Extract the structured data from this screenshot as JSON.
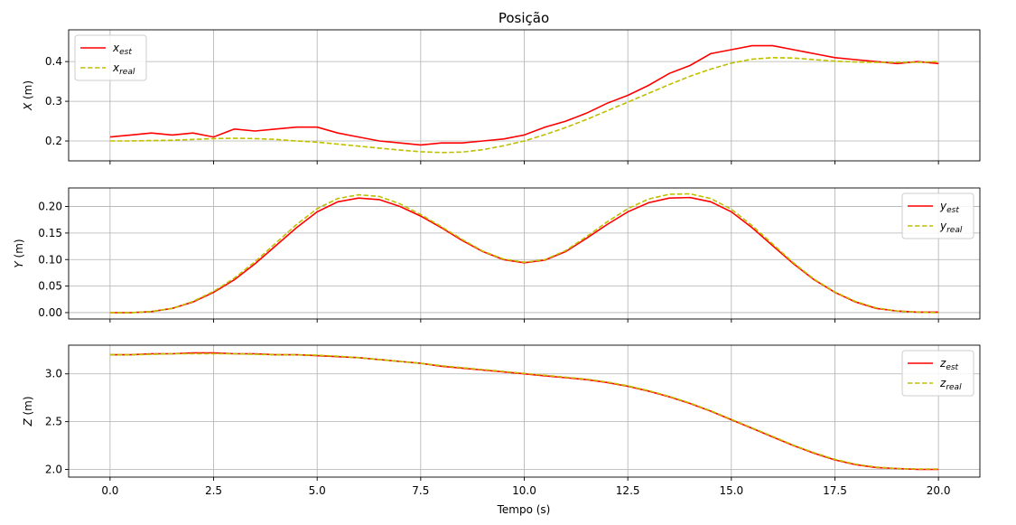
{
  "chart_data": {
    "type": "line",
    "title": "Posição",
    "xlabel": "Tempo (s)",
    "xlim": [
      -1.0,
      21.0
    ],
    "x_ticks": [
      0.0,
      2.5,
      5.0,
      7.5,
      10.0,
      12.5,
      15.0,
      17.5,
      20.0
    ],
    "x_tick_labels": [
      "0.0",
      "2.5",
      "5.0",
      "7.5",
      "10.0",
      "12.5",
      "15.0",
      "17.5",
      "20.0"
    ],
    "grid": true,
    "subplots": [
      {
        "ylabel": "X (m)",
        "ylabel_var": "X",
        "ylabel_unit": " (m)",
        "ylim": [
          0.15,
          0.48
        ],
        "y_ticks": [
          0.2,
          0.3,
          0.4
        ],
        "y_tick_labels": [
          "0.2",
          "0.3",
          "0.4"
        ],
        "legend_position": "top-left",
        "series": [
          {
            "name": "x_est",
            "var": "x",
            "sub": "est",
            "color": "#ff0000",
            "style": "solid",
            "x": [
              0,
              0.5,
              1,
              1.5,
              2,
              2.5,
              3,
              3.5,
              4,
              4.5,
              5,
              5.5,
              6,
              6.5,
              7,
              7.5,
              8,
              8.5,
              9,
              9.5,
              10,
              10.5,
              11,
              11.5,
              12,
              12.5,
              13,
              13.5,
              14,
              14.5,
              15,
              15.5,
              16,
              16.5,
              17,
              17.5,
              18,
              18.5,
              19,
              19.5,
              20
            ],
            "y": [
              0.21,
              0.215,
              0.22,
              0.215,
              0.22,
              0.21,
              0.23,
              0.225,
              0.23,
              0.235,
              0.235,
              0.22,
              0.21,
              0.2,
              0.195,
              0.19,
              0.195,
              0.195,
              0.2,
              0.205,
              0.215,
              0.235,
              0.25,
              0.27,
              0.295,
              0.315,
              0.34,
              0.37,
              0.39,
              0.42,
              0.43,
              0.44,
              0.44,
              0.43,
              0.42,
              0.41,
              0.405,
              0.4,
              0.395,
              0.4,
              0.395
            ]
          },
          {
            "name": "x_real",
            "var": "x",
            "sub": "real",
            "color": "#bfbf00",
            "style": "dashed",
            "x": [
              0,
              0.5,
              1,
              1.5,
              2,
              2.5,
              3,
              3.5,
              4,
              4.5,
              5,
              5.5,
              6,
              6.5,
              7,
              7.5,
              8,
              8.5,
              9,
              9.5,
              10,
              10.5,
              11,
              11.5,
              12,
              12.5,
              13,
              13.5,
              14,
              14.5,
              15,
              15.5,
              16,
              16.5,
              17,
              17.5,
              18,
              18.5,
              19,
              19.5,
              20
            ],
            "y": [
              0.2,
              0.2,
              0.201,
              0.202,
              0.204,
              0.206,
              0.207,
              0.206,
              0.204,
              0.2,
              0.197,
              0.192,
              0.187,
              0.182,
              0.177,
              0.173,
              0.171,
              0.172,
              0.178,
              0.188,
              0.2,
              0.216,
              0.234,
              0.254,
              0.276,
              0.298,
              0.32,
              0.342,
              0.363,
              0.381,
              0.396,
              0.406,
              0.41,
              0.409,
              0.405,
              0.401,
              0.399,
              0.398,
              0.398,
              0.398,
              0.4
            ]
          }
        ]
      },
      {
        "ylabel": "Y (m)",
        "ylabel_var": "Y",
        "ylabel_unit": " (m)",
        "ylim": [
          -0.012,
          0.235
        ],
        "y_ticks": [
          0.0,
          0.05,
          0.1,
          0.15,
          0.2
        ],
        "y_tick_labels": [
          "0.00",
          "0.05",
          "0.10",
          "0.15",
          "0.20"
        ],
        "legend_position": "top-right",
        "series": [
          {
            "name": "y_est",
            "var": "y",
            "sub": "est",
            "color": "#ff0000",
            "style": "solid",
            "x": [
              0,
              0.5,
              1,
              1.5,
              2,
              2.5,
              3,
              3.5,
              4,
              4.5,
              5,
              5.5,
              6,
              6.5,
              7,
              7.5,
              8,
              8.5,
              9,
              9.5,
              10,
              10.5,
              11,
              11.5,
              12,
              12.5,
              13,
              13.5,
              14,
              14.5,
              15,
              15.5,
              16,
              16.5,
              17,
              17.5,
              18,
              18.5,
              19,
              19.5,
              20
            ],
            "y": [
              0.0,
              0.0,
              0.002,
              0.008,
              0.02,
              0.038,
              0.062,
              0.092,
              0.126,
              0.16,
              0.19,
              0.209,
              0.216,
              0.213,
              0.2,
              0.182,
              0.16,
              0.136,
              0.115,
              0.1,
              0.094,
              0.099,
              0.115,
              0.14,
              0.166,
              0.19,
              0.207,
              0.216,
              0.217,
              0.209,
              0.19,
              0.16,
              0.126,
              0.092,
              0.062,
              0.038,
              0.02,
              0.008,
              0.003,
              0.001,
              0.001
            ]
          },
          {
            "name": "y_real",
            "var": "y",
            "sub": "real",
            "color": "#bfbf00",
            "style": "dashed",
            "x": [
              0,
              0.5,
              1,
              1.5,
              2,
              2.5,
              3,
              3.5,
              4,
              4.5,
              5,
              5.5,
              6,
              6.5,
              7,
              7.5,
              8,
              8.5,
              9,
              9.5,
              10,
              10.5,
              11,
              11.5,
              12,
              12.5,
              13,
              13.5,
              14,
              14.5,
              15,
              15.5,
              16,
              16.5,
              17,
              17.5,
              18,
              18.5,
              19,
              19.5,
              20
            ],
            "y": [
              0.0,
              0.0,
              0.002,
              0.008,
              0.021,
              0.04,
              0.065,
              0.096,
              0.131,
              0.166,
              0.196,
              0.215,
              0.222,
              0.219,
              0.205,
              0.185,
              0.162,
              0.138,
              0.116,
              0.101,
              0.095,
              0.1,
              0.117,
              0.143,
              0.171,
              0.196,
              0.214,
              0.223,
              0.224,
              0.215,
              0.195,
              0.164,
              0.129,
              0.094,
              0.063,
              0.039,
              0.021,
              0.009,
              0.003,
              0.001,
              0.0
            ]
          }
        ]
      },
      {
        "ylabel": "Z (m)",
        "ylabel_var": "Z",
        "ylabel_unit": " (m)",
        "ylim": [
          1.92,
          3.3
        ],
        "y_ticks": [
          2.0,
          2.5,
          3.0
        ],
        "y_tick_labels": [
          "2.0",
          "2.5",
          "3.0"
        ],
        "legend_position": "top-right",
        "series": [
          {
            "name": "z_est",
            "var": "z",
            "sub": "est",
            "color": "#ff0000",
            "style": "solid",
            "x": [
              0,
              0.5,
              1,
              1.5,
              2,
              2.5,
              3,
              3.5,
              4,
              4.5,
              5,
              5.5,
              6,
              6.5,
              7,
              7.5,
              8,
              8.5,
              9,
              9.5,
              10,
              10.5,
              11,
              11.5,
              12,
              12.5,
              13,
              13.5,
              14,
              14.5,
              15,
              15.5,
              16,
              16.5,
              17,
              17.5,
              18,
              18.5,
              19,
              19.5,
              20
            ],
            "y": [
              3.2,
              3.2,
              3.21,
              3.21,
              3.22,
              3.22,
              3.21,
              3.21,
              3.2,
              3.2,
              3.19,
              3.18,
              3.17,
              3.15,
              3.13,
              3.11,
              3.08,
              3.06,
              3.04,
              3.02,
              3.0,
              2.98,
              2.96,
              2.94,
              2.91,
              2.87,
              2.82,
              2.76,
              2.69,
              2.61,
              2.52,
              2.43,
              2.34,
              2.25,
              2.17,
              2.1,
              2.05,
              2.02,
              2.01,
              2.0,
              2.0
            ]
          },
          {
            "name": "z_real",
            "var": "z",
            "sub": "real",
            "color": "#bfbf00",
            "style": "dashed",
            "x": [
              0,
              0.5,
              1,
              1.5,
              2,
              2.5,
              3,
              3.5,
              4,
              4.5,
              5,
              5.5,
              6,
              6.5,
              7,
              7.5,
              8,
              8.5,
              9,
              9.5,
              10,
              10.5,
              11,
              11.5,
              12,
              12.5,
              13,
              13.5,
              14,
              14.5,
              15,
              15.5,
              16,
              16.5,
              17,
              17.5,
              18,
              18.5,
              19,
              19.5,
              20
            ],
            "y": [
              3.2,
              3.2,
              3.205,
              3.21,
              3.21,
              3.21,
              3.21,
              3.205,
              3.2,
              3.2,
              3.195,
              3.185,
              3.17,
              3.15,
              3.13,
              3.11,
              3.085,
              3.065,
              3.045,
              3.025,
              3.005,
              2.985,
              2.965,
              2.945,
              2.915,
              2.875,
              2.825,
              2.765,
              2.695,
              2.615,
              2.525,
              2.435,
              2.345,
              2.255,
              2.175,
              2.105,
              2.055,
              2.025,
              2.01,
              2.005,
              2.005
            ]
          }
        ]
      }
    ]
  }
}
